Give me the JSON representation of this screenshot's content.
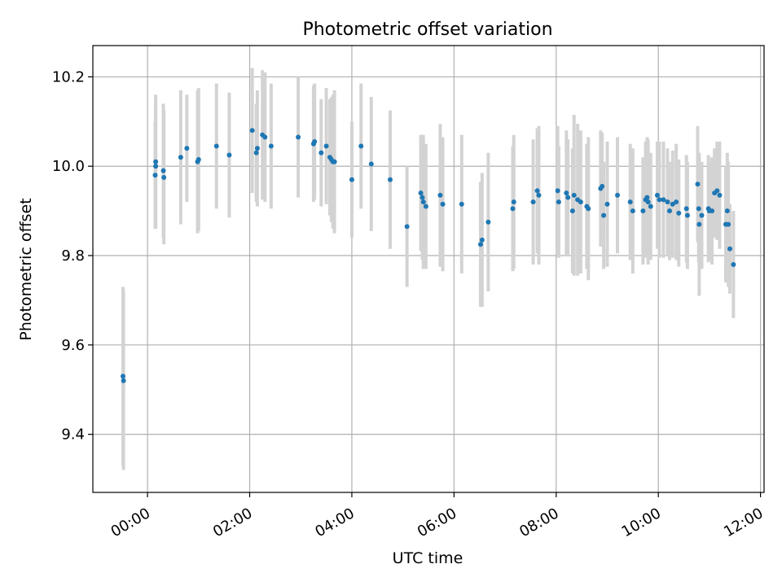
{
  "chart_data": {
    "type": "scatter",
    "title": "Photometric offset variation",
    "xlabel": "UTC time",
    "ylabel": "Photometric offset",
    "x_unit": "hours",
    "xlim": [
      -1.07,
      12.07
    ],
    "ylim": [
      9.27,
      10.27
    ],
    "x_ticks": [
      {
        "value": 0,
        "label": "00:00"
      },
      {
        "value": 2,
        "label": "02:00"
      },
      {
        "value": 4,
        "label": "04:00"
      },
      {
        "value": 6,
        "label": "06:00"
      },
      {
        "value": 8,
        "label": "08:00"
      },
      {
        "value": 10,
        "label": "10:00"
      },
      {
        "value": 12,
        "label": "12:00"
      }
    ],
    "y_ticks": [
      {
        "value": 9.4,
        "label": "9.4"
      },
      {
        "value": 9.6,
        "label": "9.6"
      },
      {
        "value": 9.8,
        "label": "9.8"
      },
      {
        "value": 10.0,
        "label": "10.0"
      },
      {
        "value": 10.2,
        "label": "10.2"
      }
    ],
    "grid": true,
    "colors": {
      "marker": "#1f77b4",
      "errorbar": "#d3d3d3",
      "grid": "#b0b0b0",
      "axes": "#000000"
    },
    "series": [
      {
        "points": [
          [
            -0.48,
            9.53,
            0.2
          ],
          [
            -0.47,
            9.52,
            0.2
          ],
          [
            0.15,
            9.98,
            0.12
          ],
          [
            0.16,
            10.01,
            0.15
          ],
          [
            0.16,
            10.0,
            0.14
          ],
          [
            0.31,
            9.99,
            0.15
          ],
          [
            0.32,
            9.975,
            0.15
          ],
          [
            0.65,
            10.02,
            0.15
          ],
          [
            0.77,
            10.04,
            0.12
          ],
          [
            0.98,
            10.01,
            0.16
          ],
          [
            1.0,
            10.015,
            0.16
          ],
          [
            1.35,
            10.045,
            0.14
          ],
          [
            1.6,
            10.025,
            0.14
          ],
          [
            2.05,
            10.08,
            0.14
          ],
          [
            2.13,
            10.03,
            0.11
          ],
          [
            2.15,
            10.04,
            0.13
          ],
          [
            2.25,
            10.07,
            0.145
          ],
          [
            2.3,
            10.065,
            0.145
          ],
          [
            2.42,
            10.045,
            0.14
          ],
          [
            2.95,
            10.065,
            0.135
          ],
          [
            3.25,
            10.05,
            0.13
          ],
          [
            3.27,
            10.055,
            0.13
          ],
          [
            3.4,
            10.03,
            0.12
          ],
          [
            3.5,
            10.045,
            0.13
          ],
          [
            3.57,
            10.02,
            0.13
          ],
          [
            3.6,
            10.015,
            0.14
          ],
          [
            3.63,
            10.01,
            0.15
          ],
          [
            3.66,
            10.01,
            0.16
          ],
          [
            4.0,
            9.97,
            0.13
          ],
          [
            4.18,
            10.045,
            0.14
          ],
          [
            4.38,
            10.005,
            0.15
          ],
          [
            4.75,
            9.97,
            0.155
          ],
          [
            5.08,
            9.865,
            0.135
          ],
          [
            5.35,
            9.94,
            0.13
          ],
          [
            5.38,
            9.93,
            0.14
          ],
          [
            5.4,
            9.92,
            0.15
          ],
          [
            5.45,
            9.91,
            0.14
          ],
          [
            5.73,
            9.935,
            0.16
          ],
          [
            5.78,
            9.915,
            0.15
          ],
          [
            6.15,
            9.915,
            0.155
          ],
          [
            6.52,
            9.825,
            0.14
          ],
          [
            6.55,
            9.835,
            0.15
          ],
          [
            6.67,
            9.875,
            0.155
          ],
          [
            7.15,
            9.905,
            0.14
          ],
          [
            7.17,
            9.92,
            0.15
          ],
          [
            7.55,
            9.92,
            0.14
          ],
          [
            7.63,
            9.945,
            0.14
          ],
          [
            7.66,
            9.935,
            0.155
          ],
          [
            8.03,
            9.945,
            0.145
          ],
          [
            8.05,
            9.92,
            0.125
          ],
          [
            8.2,
            9.94,
            0.14
          ],
          [
            8.23,
            9.93,
            0.13
          ],
          [
            8.32,
            9.9,
            0.14
          ],
          [
            8.35,
            9.935,
            0.18
          ],
          [
            8.42,
            9.925,
            0.17
          ],
          [
            8.48,
            9.92,
            0.16
          ],
          [
            8.6,
            9.91,
            0.14
          ],
          [
            8.63,
            9.905,
            0.16
          ],
          [
            8.87,
            9.95,
            0.13
          ],
          [
            8.9,
            9.955,
            0.12
          ],
          [
            8.93,
            9.89,
            0.12
          ],
          [
            9.0,
            9.915,
            0.14
          ],
          [
            9.2,
            9.935,
            0.13
          ],
          [
            9.45,
            9.92,
            0.13
          ],
          [
            9.5,
            9.9,
            0.14
          ],
          [
            9.7,
            9.9,
            0.12
          ],
          [
            9.75,
            9.925,
            0.13
          ],
          [
            9.78,
            9.93,
            0.135
          ],
          [
            9.8,
            9.92,
            0.14
          ],
          [
            9.85,
            9.91,
            0.12
          ],
          [
            9.98,
            9.935,
            0.12
          ],
          [
            10.02,
            9.925,
            0.13
          ],
          [
            10.1,
            9.925,
            0.13
          ],
          [
            10.18,
            9.92,
            0.12
          ],
          [
            10.22,
            9.9,
            0.11
          ],
          [
            10.28,
            9.915,
            0.12
          ],
          [
            10.35,
            9.92,
            0.13
          ],
          [
            10.4,
            9.895,
            0.12
          ],
          [
            10.55,
            9.905,
            0.12
          ],
          [
            10.57,
            9.89,
            0.12
          ],
          [
            10.77,
            9.96,
            0.13
          ],
          [
            10.79,
            9.905,
            0.12
          ],
          [
            10.8,
            9.87,
            0.16
          ],
          [
            10.85,
            9.89,
            0.12
          ],
          [
            10.98,
            9.905,
            0.12
          ],
          [
            11.0,
            9.9,
            0.11
          ],
          [
            11.05,
            9.9,
            0.12
          ],
          [
            11.1,
            9.94,
            0.1
          ],
          [
            11.15,
            9.945,
            0.11
          ],
          [
            11.2,
            9.935,
            0.12
          ],
          [
            11.32,
            9.87,
            0.13
          ],
          [
            11.35,
            9.9,
            0.13
          ],
          [
            11.37,
            9.87,
            0.14
          ],
          [
            11.4,
            9.815,
            0.1
          ],
          [
            11.47,
            9.78,
            0.12
          ]
        ]
      }
    ]
  }
}
